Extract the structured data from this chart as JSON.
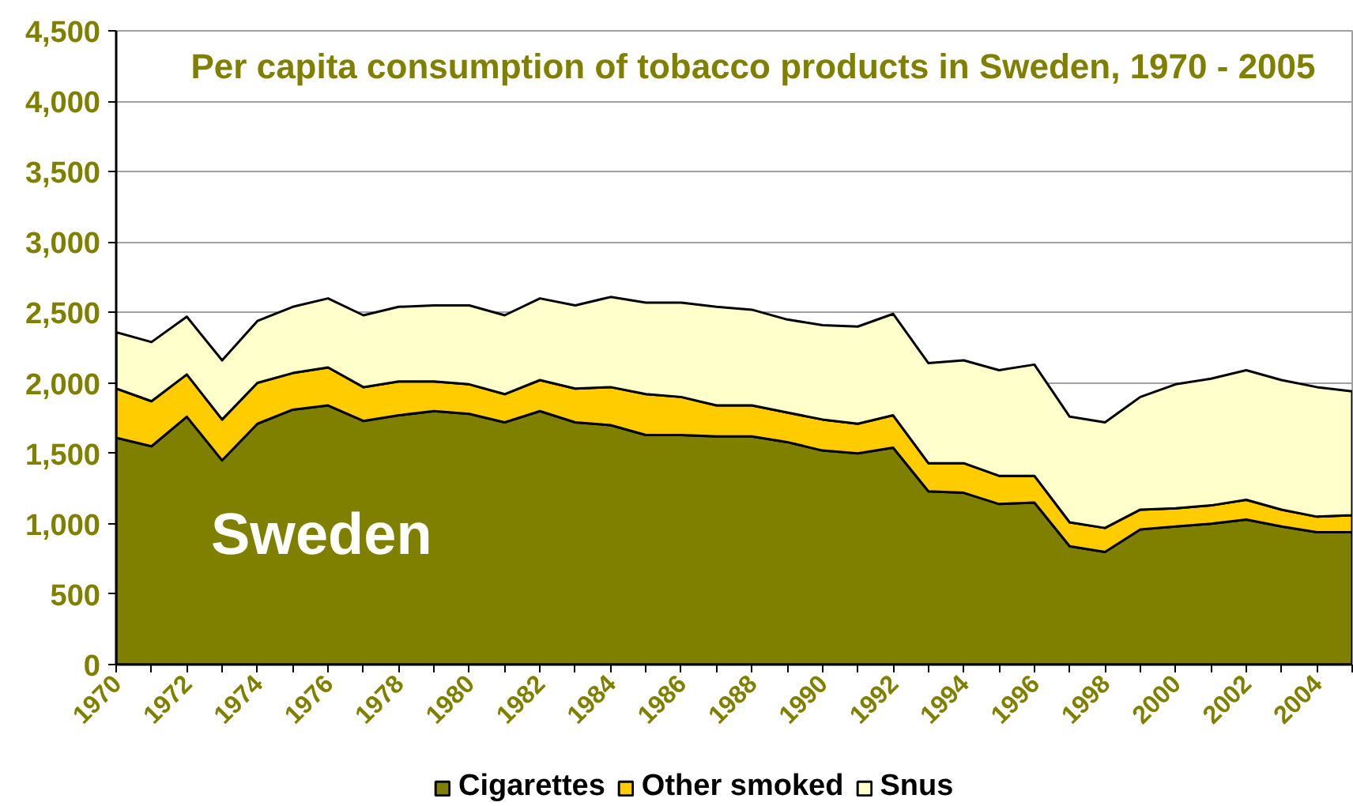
{
  "chart_data": {
    "type": "area",
    "stacked": true,
    "title": "Per capita consumption of tobacco products in Sweden, 1970 - 2005",
    "annotations": [
      "Sweden"
    ],
    "categories": [
      "1970",
      null,
      "1972",
      null,
      "1974",
      null,
      "1976",
      null,
      "1978",
      null,
      "1980",
      null,
      "1982",
      null,
      "1984",
      null,
      "1986",
      null,
      "1988",
      null,
      "1990",
      null,
      "1992",
      null,
      "1994",
      null,
      "1996",
      null,
      "1998",
      null,
      "2000",
      null,
      "2002",
      null,
      "2004",
      null
    ],
    "series": [
      {
        "name": "Cigarettes",
        "color": "#808000",
        "values": [
          1610,
          1550,
          1760,
          1450,
          1710,
          1810,
          1840,
          1730,
          1770,
          1800,
          1780,
          1720,
          1800,
          1720,
          1700,
          1630,
          1630,
          1620,
          1620,
          1580,
          1520,
          1500,
          1540,
          1230,
          1220,
          1140,
          1150,
          840,
          800,
          960,
          980,
          1000,
          1030,
          980,
          940,
          940
        ]
      },
      {
        "name": "Other smoked",
        "color": "#ffcc00",
        "values": [
          350,
          320,
          300,
          290,
          290,
          260,
          270,
          240,
          240,
          210,
          210,
          200,
          220,
          240,
          270,
          290,
          270,
          220,
          220,
          210,
          220,
          210,
          230,
          200,
          210,
          200,
          190,
          170,
          170,
          140,
          130,
          130,
          140,
          120,
          110,
          120
        ]
      },
      {
        "name": "Snus",
        "color": "#ffffcc",
        "values": [
          400,
          420,
          410,
          420,
          440,
          470,
          490,
          510,
          530,
          540,
          560,
          560,
          580,
          590,
          640,
          650,
          670,
          700,
          680,
          660,
          670,
          690,
          720,
          710,
          730,
          750,
          790,
          750,
          750,
          800,
          880,
          900,
          920,
          920,
          920,
          880
        ]
      }
    ],
    "ylim": [
      0,
      4500
    ],
    "yticks": [
      0,
      500,
      {
        "value": 1000,
        "label": "1,000"
      },
      {
        "value": 1500,
        "label": "1,500"
      },
      {
        "value": 2000,
        "label": "2,000"
      },
      {
        "value": 2500,
        "label": "2,500"
      },
      {
        "value": 3000,
        "label": "3,000"
      },
      {
        "value": 3500,
        "label": "3,500"
      },
      {
        "value": 4000,
        "label": "4,000"
      },
      {
        "value": 4500,
        "label": "4,500"
      }
    ],
    "grid": "y",
    "legend": "bottom"
  }
}
